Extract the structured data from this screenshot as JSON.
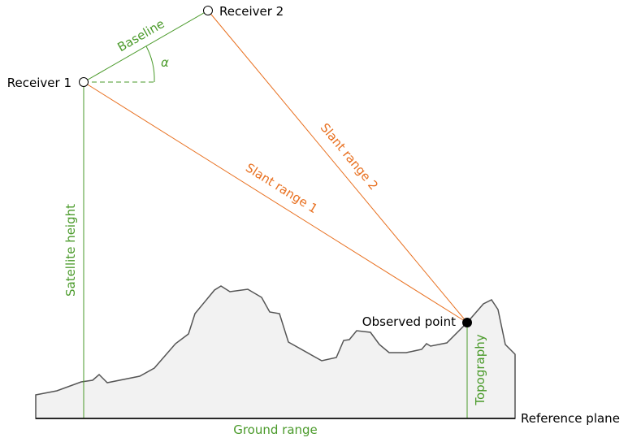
{
  "labels": {
    "receiver1": "Receiver 1",
    "receiver2": "Receiver 2",
    "baseline": "Baseline",
    "alpha": "α",
    "slant1": "Slant range 1",
    "slant2": "Slant range 2",
    "satellite_height": "Satellite height",
    "observed_point": "Observed point",
    "topography": "Topography",
    "ground_range": "Ground range",
    "reference_plane": "Reference plane"
  },
  "colors": {
    "green": "#4a9a2a",
    "orange": "#e87020",
    "terrain_fill": "#f2f2f2",
    "terrain_line": "#555555",
    "axis": "#000000"
  }
}
